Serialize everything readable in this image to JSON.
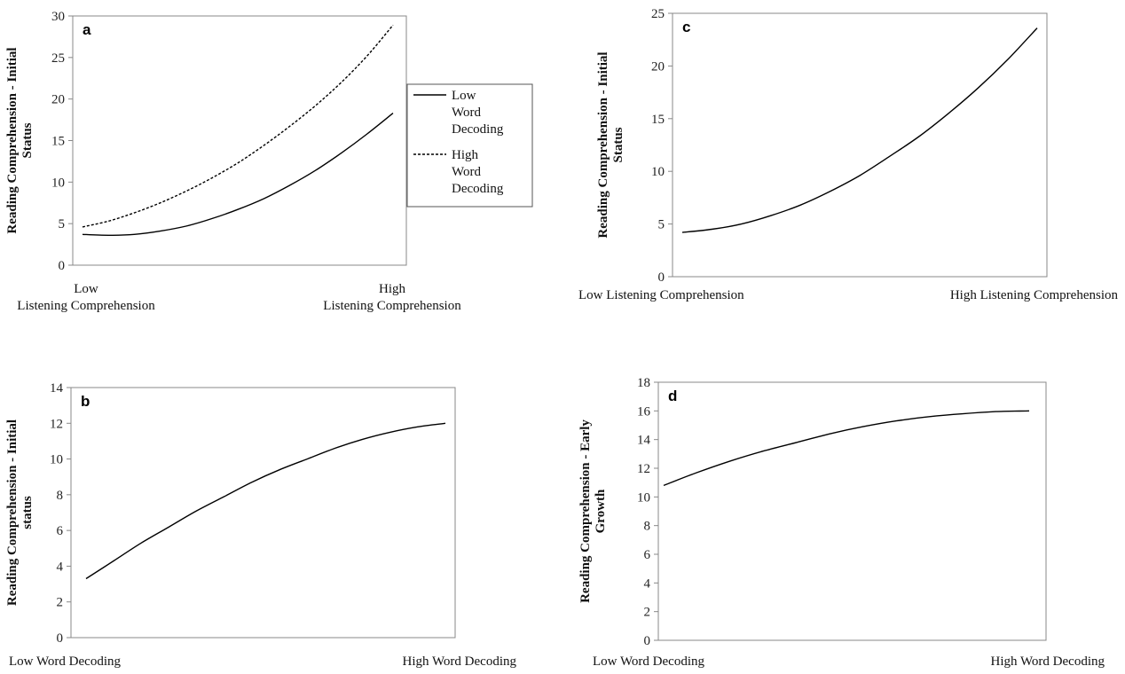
{
  "chart_data": [
    {
      "id": "a",
      "type": "line",
      "panel_label": "a",
      "ylabel": "Reading Comprehension - Initial Status",
      "ylim": [
        0,
        30
      ],
      "yticks": [
        0,
        5,
        10,
        15,
        20,
        25,
        30
      ],
      "x_category_labels": [
        "Low Listening Comprehension",
        "High Listening Comprehension"
      ],
      "legend": {
        "placement": "right",
        "entries": [
          "Low Word Decoding",
          "High Word Decoding"
        ]
      },
      "grid": false,
      "series": [
        {
          "name": "Low Word Decoding",
          "style": "solid",
          "values": [
            3.7,
            3.6,
            3.7,
            4.1,
            4.7,
            5.6,
            6.7,
            8.0,
            9.6,
            11.4,
            13.5,
            15.8,
            18.3
          ]
        },
        {
          "name": "High Word Decoding",
          "style": "dashed",
          "values": [
            4.6,
            5.3,
            6.3,
            7.5,
            8.9,
            10.5,
            12.3,
            14.4,
            16.7,
            19.2,
            22.0,
            25.2,
            28.9
          ]
        }
      ]
    },
    {
      "id": "b",
      "type": "line",
      "panel_label": "b",
      "ylabel": "Reading Comprehension - Initial status",
      "ylim": [
        0,
        14
      ],
      "yticks": [
        0,
        2,
        4,
        6,
        8,
        10,
        12,
        14
      ],
      "x_category_labels": [
        "Low Word Decoding",
        "High Word Decoding"
      ],
      "grid": false,
      "series": [
        {
          "style": "solid",
          "values": [
            3.3,
            4.3,
            5.3,
            6.2,
            7.1,
            7.9,
            8.7,
            9.4,
            10.0,
            10.6,
            11.1,
            11.5,
            11.8,
            12.0
          ]
        }
      ]
    },
    {
      "id": "c",
      "type": "line",
      "panel_label": "c",
      "ylabel": "Reading Comprehension - Initial Status",
      "ylim": [
        0,
        25
      ],
      "yticks": [
        0,
        5,
        10,
        15,
        20,
        25
      ],
      "x_category_labels": [
        "Low Listening Comprehension",
        "High Listening Comprehension"
      ],
      "grid": false,
      "series": [
        {
          "style": "solid",
          "values": [
            4.2,
            4.5,
            5.0,
            5.8,
            6.8,
            8.1,
            9.6,
            11.4,
            13.3,
            15.5,
            17.9,
            20.6,
            23.6
          ]
        }
      ]
    },
    {
      "id": "d",
      "type": "line",
      "panel_label": "d",
      "ylabel": "Reading Comprehension - Early Growth",
      "ylim": [
        0,
        18
      ],
      "yticks": [
        0,
        2,
        4,
        6,
        8,
        10,
        12,
        14,
        16,
        18
      ],
      "x_category_labels": [
        "Low Word Decoding",
        "High Word Decoding"
      ],
      "grid": false,
      "series": [
        {
          "style": "solid",
          "values": [
            10.8,
            11.7,
            12.5,
            13.2,
            13.8,
            14.4,
            14.9,
            15.3,
            15.6,
            15.8,
            15.95,
            16.0
          ]
        }
      ]
    }
  ]
}
